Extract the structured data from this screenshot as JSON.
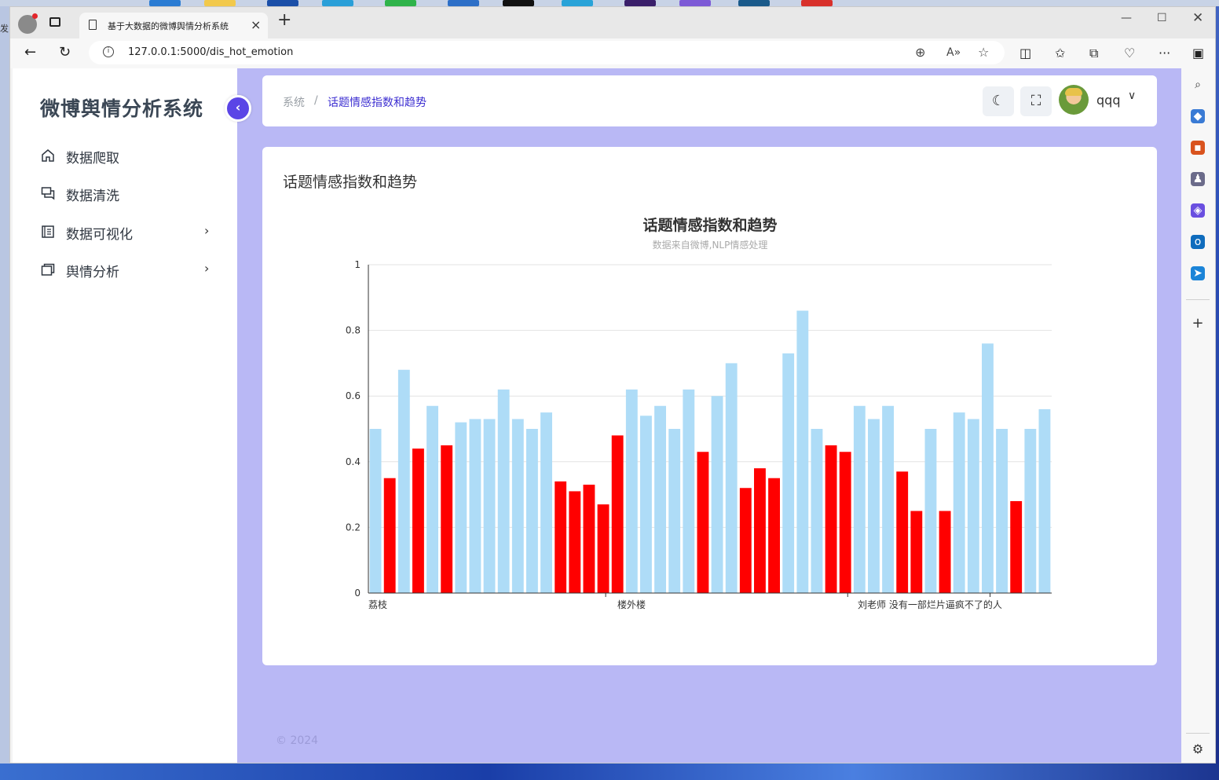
{
  "browser": {
    "tab_title": "基于大数据的微博舆情分析系统",
    "url": "127.0.0.1:5000/dis_hot_emotion",
    "desktop_text": "发"
  },
  "sidebar": {
    "logo": "微博舆情分析系统",
    "items": [
      {
        "label": "数据爬取",
        "icon": "home-icon",
        "has_children": false
      },
      {
        "label": "数据清洗",
        "icon": "chat-icon",
        "has_children": false
      },
      {
        "label": "数据可视化",
        "icon": "document-icon",
        "has_children": true
      },
      {
        "label": "舆情分析",
        "icon": "window-icon",
        "has_children": true
      }
    ]
  },
  "header": {
    "breadcrumb_root": "系统",
    "breadcrumb_sep": "/",
    "breadcrumb_current": "话题情感指数和趋势",
    "username": "qqq"
  },
  "card": {
    "title": "话题情感指数和趋势"
  },
  "footer": {
    "copyright": "© 2024"
  },
  "colors": {
    "accent": "#5b45e6",
    "page_bg": "#b9b8f5",
    "bar_positive": "#aedcf7",
    "bar_negative": "#ff0000"
  },
  "chart_data": {
    "type": "bar",
    "title": "话题情感指数和趋势",
    "subtitle": "数据来自微博,NLP情感处理",
    "ylim": [
      0,
      1
    ],
    "yticks": [
      "0",
      "0.2",
      "0.4",
      "0.6",
      "0.8",
      "1"
    ],
    "xtick_labels": [
      {
        "index": 0,
        "text": "荔枝"
      },
      {
        "index": 17,
        "text": "楼外楼"
      },
      {
        "index": 34,
        "text": "刘老师 没有一部烂片逼疯不了的人"
      }
    ],
    "grid": true,
    "values": [
      0.5,
      0.35,
      0.68,
      0.44,
      0.57,
      0.45,
      0.52,
      0.53,
      0.53,
      0.62,
      0.53,
      0.5,
      0.55,
      0.34,
      0.31,
      0.33,
      0.27,
      0.48,
      0.62,
      0.54,
      0.57,
      0.5,
      0.62,
      0.43,
      0.6,
      0.7,
      0.32,
      0.38,
      0.35,
      0.73,
      0.86,
      0.5,
      0.45,
      0.43,
      0.57,
      0.53,
      0.57,
      0.37,
      0.25,
      0.5,
      0.25,
      0.55,
      0.53,
      0.76,
      0.5,
      0.28,
      0.5,
      0.56
    ],
    "threshold": 0.5
  }
}
